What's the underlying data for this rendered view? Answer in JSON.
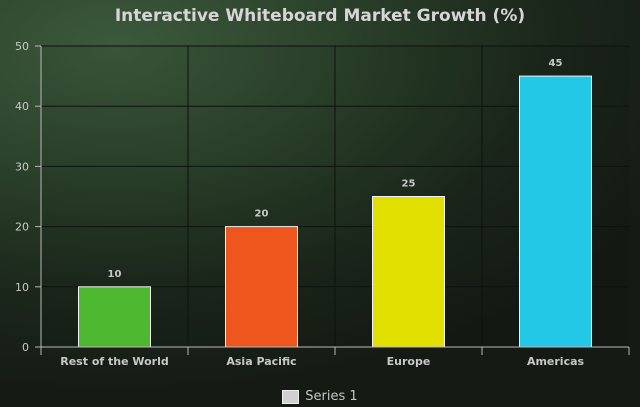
{
  "chart_data": {
    "type": "bar",
    "title": "Interactive Whiteboard Market Growth (%)",
    "categories": [
      "Rest of the World",
      "Asia Pacific",
      "Europe",
      "Americas"
    ],
    "series": [
      {
        "name": "Series 1",
        "values": [
          10,
          20,
          25,
          45
        ]
      }
    ],
    "data_labels": [
      "10",
      "20",
      "25",
      "45"
    ],
    "colors": [
      "#4fb831",
      "#ee561d",
      "#e2e000",
      "#22c8e6"
    ],
    "y_ticks": [
      "0",
      "10",
      "20",
      "30",
      "40",
      "50"
    ],
    "ylim": [
      0,
      50
    ],
    "xlabel": "",
    "ylabel": "",
    "grid": true,
    "legend_position": "bottom"
  }
}
